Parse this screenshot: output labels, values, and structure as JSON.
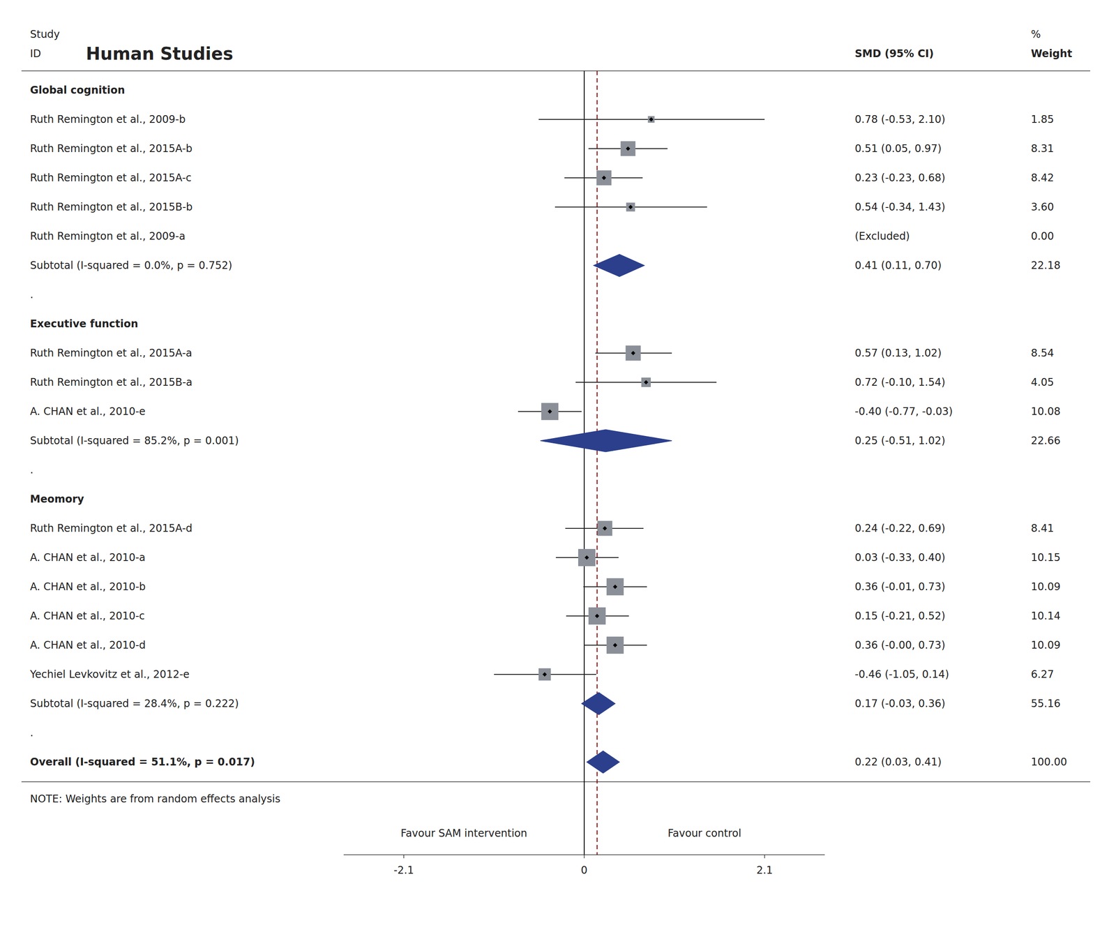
{
  "chart_data": {
    "type": "forest",
    "title": "Human Studies",
    "column_headers": {
      "study": "Study",
      "id": "ID",
      "estimate": "SMD (95% CI)",
      "weight_top": "%",
      "weight": "Weight"
    },
    "xlabel_left": "Favour SAM intervention",
    "xlabel_right": "Favour control",
    "xlim": [
      -2.8,
      2.8
    ],
    "xticks": [
      -2.1,
      0,
      2.1
    ],
    "reference_lines": [
      {
        "value": 0,
        "line_style": "solid",
        "color": "#000000"
      },
      {
        "value": 0.15,
        "line_style": "dashed",
        "color": "#8B0000"
      }
    ],
    "rows": [
      {
        "kind": "subheader",
        "label": "Global cognition"
      },
      {
        "kind": "study",
        "label": "Ruth Remington et al., 2009-b",
        "value": 0.78,
        "ci_lo": -0.53,
        "ci_hi": 2.1,
        "weight": 1.85,
        "value_label": "0.78 (-0.53, 2.10)",
        "weight_label": "1.85"
      },
      {
        "kind": "study",
        "label": "Ruth Remington et al., 2015A-b",
        "value": 0.51,
        "ci_lo": 0.05,
        "ci_hi": 0.97,
        "weight": 8.31,
        "value_label": "0.51 (0.05, 0.97)",
        "weight_label": "8.31"
      },
      {
        "kind": "study",
        "label": "Ruth Remington et al., 2015A-c",
        "value": 0.23,
        "ci_lo": -0.23,
        "ci_hi": 0.68,
        "weight": 8.42,
        "value_label": "0.23 (-0.23, 0.68)",
        "weight_label": "8.42"
      },
      {
        "kind": "study",
        "label": "Ruth Remington et al., 2015B-b",
        "value": 0.54,
        "ci_lo": -0.34,
        "ci_hi": 1.43,
        "weight": 3.6,
        "value_label": "0.54 (-0.34, 1.43)",
        "weight_label": "3.60"
      },
      {
        "kind": "excluded",
        "label": "Ruth Remington et al., 2009-a",
        "value_label": "(Excluded)",
        "weight_label": "0.00"
      },
      {
        "kind": "subtotal",
        "label": "Subtotal  (I-squared = 0.0%, p = 0.752)",
        "value": 0.41,
        "ci_lo": 0.11,
        "ci_hi": 0.7,
        "value_label": "0.41 (0.11, 0.70)",
        "weight_label": "22.18"
      },
      {
        "kind": "blank",
        "label": "."
      },
      {
        "kind": "subheader",
        "label": "Executive function"
      },
      {
        "kind": "study",
        "label": "Ruth Remington et al., 2015A-a",
        "value": 0.57,
        "ci_lo": 0.13,
        "ci_hi": 1.02,
        "weight": 8.54,
        "value_label": "0.57 (0.13, 1.02)",
        "weight_label": "8.54"
      },
      {
        "kind": "study",
        "label": "Ruth Remington et al., 2015B-a",
        "value": 0.72,
        "ci_lo": -0.1,
        "ci_hi": 1.54,
        "weight": 4.05,
        "value_label": "0.72 (-0.10, 1.54)",
        "weight_label": "4.05"
      },
      {
        "kind": "study",
        "label": "A. CHAN et al., 2010-e",
        "value": -0.4,
        "ci_lo": -0.77,
        "ci_hi": -0.03,
        "weight": 10.08,
        "value_label": "-0.40 (-0.77, -0.03)",
        "weight_label": "10.08"
      },
      {
        "kind": "subtotal",
        "label": "Subtotal  (I-squared = 85.2%, p = 0.001)",
        "value": 0.25,
        "ci_lo": -0.51,
        "ci_hi": 1.02,
        "value_label": "0.25 (-0.51, 1.02)",
        "weight_label": "22.66"
      },
      {
        "kind": "blank",
        "label": "."
      },
      {
        "kind": "subheader",
        "label": "Meomory"
      },
      {
        "kind": "study",
        "label": "Ruth Remington et al., 2015A-d",
        "value": 0.24,
        "ci_lo": -0.22,
        "ci_hi": 0.69,
        "weight": 8.41,
        "value_label": "0.24 (-0.22, 0.69)",
        "weight_label": "8.41"
      },
      {
        "kind": "study",
        "label": "A. CHAN et al., 2010-a",
        "value": 0.03,
        "ci_lo": -0.33,
        "ci_hi": 0.4,
        "weight": 10.15,
        "value_label": "0.03 (-0.33, 0.40)",
        "weight_label": "10.15"
      },
      {
        "kind": "study",
        "label": "A. CHAN et al., 2010-b",
        "value": 0.36,
        "ci_lo": -0.01,
        "ci_hi": 0.73,
        "weight": 10.09,
        "value_label": "0.36 (-0.01, 0.73)",
        "weight_label": "10.09"
      },
      {
        "kind": "study",
        "label": "A. CHAN et al., 2010-c",
        "value": 0.15,
        "ci_lo": -0.21,
        "ci_hi": 0.52,
        "weight": 10.14,
        "value_label": "0.15 (-0.21, 0.52)",
        "weight_label": "10.14"
      },
      {
        "kind": "study",
        "label": "A. CHAN et al., 2010-d",
        "value": 0.36,
        "ci_lo": -0.0,
        "ci_hi": 0.73,
        "weight": 10.09,
        "value_label": "0.36 (-0.00, 0.73)",
        "weight_label": "10.09"
      },
      {
        "kind": "study",
        "label": "Yechiel Levkovitz et al., 2012-e",
        "value": -0.46,
        "ci_lo": -1.05,
        "ci_hi": 0.14,
        "weight": 6.27,
        "value_label": "-0.46 (-1.05, 0.14)",
        "weight_label": "6.27"
      },
      {
        "kind": "subtotal",
        "label": "Subtotal  (I-squared = 28.4%, p = 0.222)",
        "value": 0.17,
        "ci_lo": -0.03,
        "ci_hi": 0.36,
        "value_label": "0.17 (-0.03, 0.36)",
        "weight_label": "55.16"
      },
      {
        "kind": "blank",
        "label": "."
      },
      {
        "kind": "overall",
        "label": "Overall  (I-squared = 51.1%, p = 0.017)",
        "value": 0.22,
        "ci_lo": 0.03,
        "ci_hi": 0.41,
        "value_label": "0.22 (0.03, 0.41)",
        "weight_label": "100.00"
      }
    ],
    "note": "NOTE: Weights are from random effects analysis"
  }
}
